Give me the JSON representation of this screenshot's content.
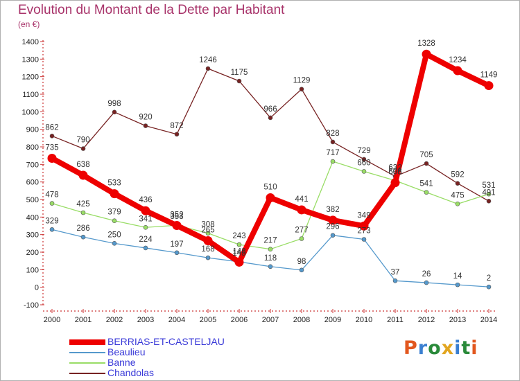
{
  "title": "Evolution du Montant de la Dette par Habitant",
  "subtitle": "(en €)",
  "logo": {
    "text": "Proxiti",
    "colors": [
      "#e2571e",
      "#3a7fd1",
      "#2a8a3a",
      "#e2a51e",
      "#3a7fd1",
      "#2a8a3a",
      "#e2571e"
    ]
  },
  "chart_data": {
    "type": "line",
    "x": [
      "2000",
      "2001",
      "2002",
      "2003",
      "2004",
      "2005",
      "2006",
      "2007",
      "2008",
      "2009",
      "2010",
      "2011",
      "2012",
      "2013",
      "2014"
    ],
    "ylim": [
      -100,
      1400
    ],
    "yticks": [
      -100,
      0,
      100,
      200,
      300,
      400,
      500,
      600,
      700,
      800,
      900,
      1000,
      1100,
      1200,
      1300,
      1400
    ],
    "grid": false,
    "legend": "bottom-left",
    "series": [
      {
        "name": "BERRIAS-ET-CASTELJAU",
        "color": "#ee0000",
        "values": [
          735,
          638,
          533,
          436,
          352,
          265,
          143,
          510,
          441,
          382,
          349,
          596,
          1328,
          1234,
          1149
        ]
      },
      {
        "name": "Beaulieu",
        "color": "#5599cc",
        "values": [
          329,
          286,
          250,
          224,
          197,
          168,
          145,
          118,
          98,
          296,
          273,
          37,
          26,
          14,
          2
        ]
      },
      {
        "name": "Banne",
        "color": "#99dd66",
        "values": [
          478,
          425,
          379,
          341,
          353,
          308,
          243,
          217,
          277,
          717,
          660,
          608,
          541,
          475,
          531
        ]
      },
      {
        "name": "Chandolas",
        "color": "#772222",
        "values": [
          862,
          790,
          998,
          920,
          872,
          1246,
          1175,
          966,
          1129,
          828,
          729,
          632,
          705,
          592,
          491
        ]
      }
    ]
  }
}
